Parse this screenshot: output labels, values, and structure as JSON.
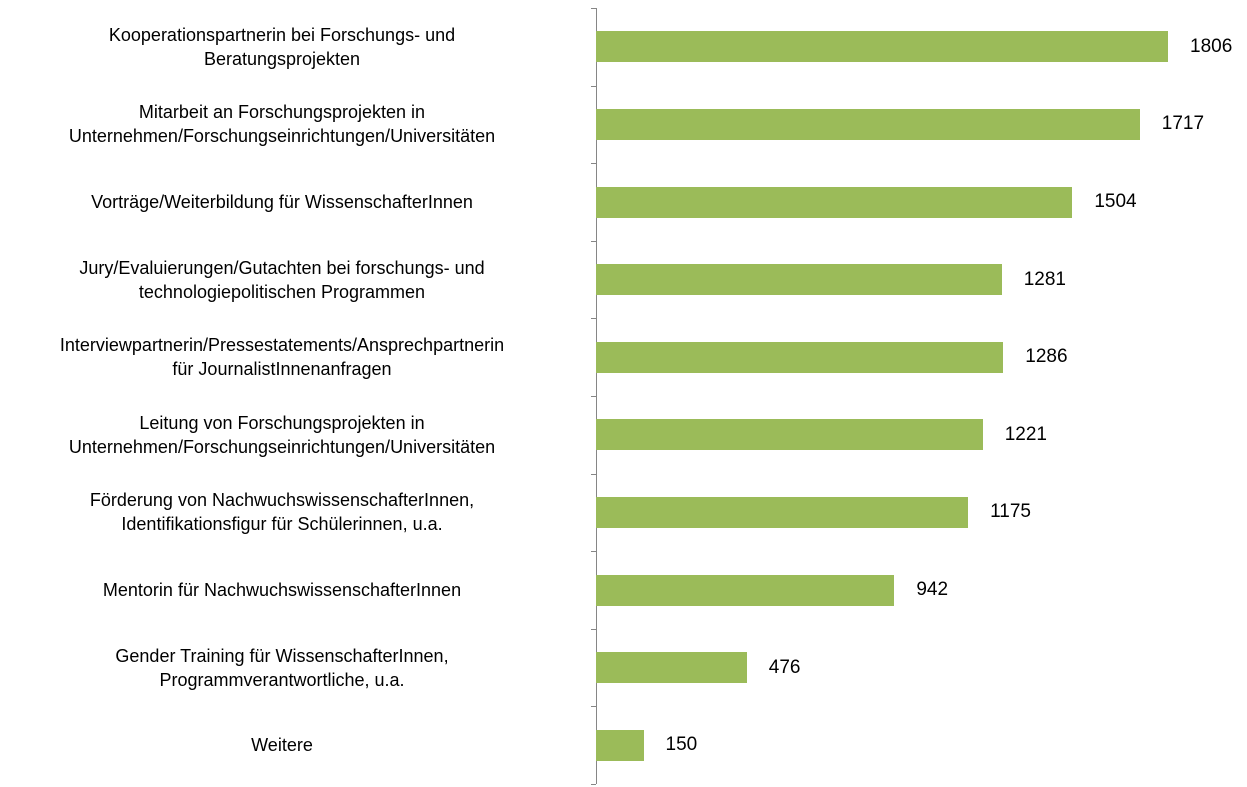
{
  "chart_data": {
    "type": "bar",
    "orientation": "horizontal",
    "color": "#9bbb59",
    "categories": [
      "Kooperationspartnerin bei Forschungs- und\nBeratungsprojekten",
      "Mitarbeit an Forschungsprojekten in\nUnternehmen/Forschungseinrichtungen/Universitäten",
      "Vorträge/Weiterbildung für WissenschafterInnen",
      "Jury/Evaluierungen/Gutachten bei forschungs- und\ntechnologiepolitischen Programmen",
      "Interviewpartnerin/Pressestatements/Ansprechpartnerin\nfür JournalistInnenanfragen",
      "Leitung von Forschungsprojekten in\nUnternehmen/Forschungseinrichtungen/Universitäten",
      "Förderung von NachwuchswissenschafterInnen,\nIdentifikationsfigur für Schülerinnen, u.a.",
      "Mentorin für NachwuchswissenschafterInnen",
      "Gender Training für WissenschafterInnen,\nProgrammverantwortliche, u.a.",
      "Weitere"
    ],
    "values": [
      1806,
      1717,
      1504,
      1281,
      1286,
      1221,
      1175,
      942,
      476,
      150
    ]
  }
}
